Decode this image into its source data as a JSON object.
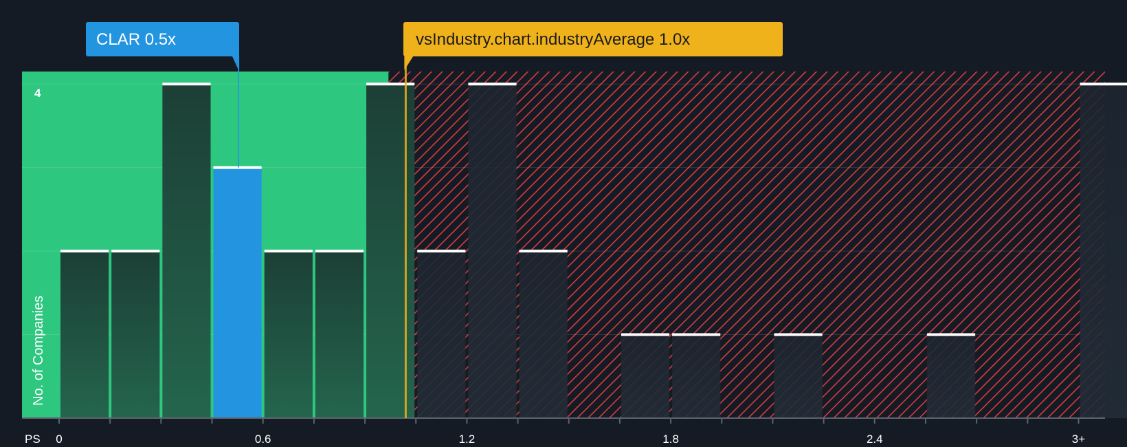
{
  "chart_data": {
    "type": "bar",
    "x_axis_label": "PS",
    "y_axis_label": "No. of Companies",
    "x_ticks": [
      "0",
      "0.6",
      "1.2",
      "1.8",
      "2.4",
      "3+"
    ],
    "y_ticks": [
      "4"
    ],
    "x_range": [
      0,
      3.15
    ],
    "y_range": [
      0,
      4.15
    ],
    "bins": [
      {
        "start": 0.0,
        "end": 0.15,
        "count": 2
      },
      {
        "start": 0.15,
        "end": 0.3,
        "count": 2
      },
      {
        "start": 0.3,
        "end": 0.45,
        "count": 4
      },
      {
        "start": 0.45,
        "end": 0.6,
        "count": 3
      },
      {
        "start": 0.6,
        "end": 0.75,
        "count": 2
      },
      {
        "start": 0.75,
        "end": 0.9,
        "count": 2
      },
      {
        "start": 0.9,
        "end": 1.05,
        "count": 4
      },
      {
        "start": 1.05,
        "end": 1.2,
        "count": 2
      },
      {
        "start": 1.2,
        "end": 1.35,
        "count": 4
      },
      {
        "start": 1.35,
        "end": 1.5,
        "count": 2
      },
      {
        "start": 1.5,
        "end": 1.65,
        "count": 0
      },
      {
        "start": 1.65,
        "end": 1.8,
        "count": 1
      },
      {
        "start": 1.8,
        "end": 1.95,
        "count": 1
      },
      {
        "start": 1.95,
        "end": 2.1,
        "count": 0
      },
      {
        "start": 2.1,
        "end": 2.25,
        "count": 1
      },
      {
        "start": 2.25,
        "end": 2.4,
        "count": 0
      },
      {
        "start": 2.4,
        "end": 2.55,
        "count": 0
      },
      {
        "start": 2.55,
        "end": 2.7,
        "count": 1
      },
      {
        "start": 2.7,
        "end": 2.85,
        "count": 0
      },
      {
        "start": 2.85,
        "end": 3.0,
        "count": 0
      },
      {
        "start": 3.0,
        "end": 3.15,
        "count": 4
      }
    ],
    "company": {
      "label": "CLAR 0.5x",
      "value": 0.53
    },
    "industry_average": {
      "label": "vsIndustry.chart.industryAverage 1.0x",
      "value": 1.02
    },
    "colors": {
      "background": "#151b24",
      "fair_zone": "#2ec77f",
      "overvalued_hatch": "#d83b3e",
      "bar": "#1f4a3d",
      "company_bar": "#2394e0",
      "company_callout": "#2394e0",
      "industry_callout": "#f0b21a",
      "bar_top": "#ffffff"
    },
    "grid": true
  }
}
